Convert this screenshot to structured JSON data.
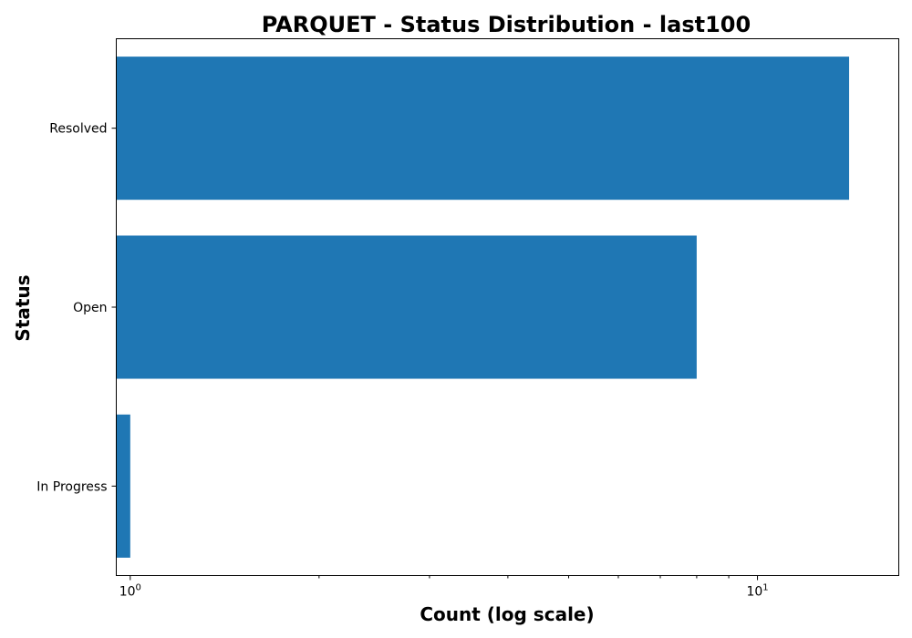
{
  "chart_data": {
    "type": "bar",
    "orientation": "horizontal",
    "title": "PARQUET - Status Distribution - last100",
    "xlabel": "Count (log scale)",
    "ylabel": "Status",
    "x_scale": "log",
    "xlim": [
      0.95,
      16.8
    ],
    "categories": [
      "Resolved",
      "Open",
      "In Progress"
    ],
    "values": [
      14,
      8,
      1
    ],
    "x_major_ticks": [
      {
        "value": 1,
        "base": "10",
        "exp": "0"
      },
      {
        "value": 10,
        "base": "10",
        "exp": "1"
      }
    ],
    "x_minor_ticks": [
      2,
      3,
      4,
      5,
      6,
      7,
      8,
      9
    ],
    "bar_color": "#1f77b4",
    "grid": false,
    "legend": "none"
  }
}
